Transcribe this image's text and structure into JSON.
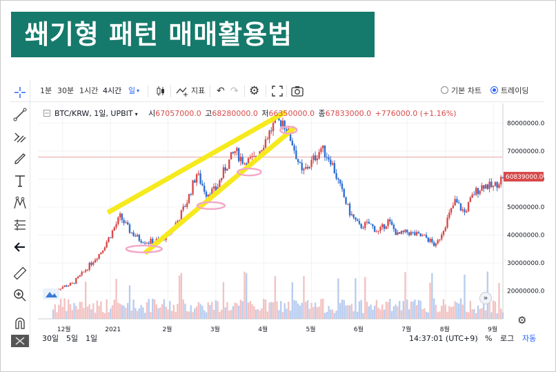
{
  "banner": {
    "title": "쐐기형 패턴 매매활용법"
  },
  "toolbar": {
    "intervals": [
      "1분",
      "30분",
      "1시간",
      "4시간",
      "일"
    ],
    "indicators_label": "지표",
    "view_basic": "기본 차트",
    "view_tradingview": "트레이딩"
  },
  "legend": {
    "symbol": "BTC/KRW, 1일, UPBIT",
    "open_label": "시",
    "open": "67057000.0",
    "high_label": "고",
    "high": "68280000.0",
    "low_label": "저",
    "low": "66350000.0",
    "close_label": "종",
    "close": "67833000.0",
    "change": "+776000.0 (+1.16%)"
  },
  "icons": [
    "crosshair-icon",
    "trendline-icon",
    "fib-icon",
    "brush-icon",
    "text-icon",
    "pattern-icon",
    "measure-icon",
    "arrow-left-icon",
    "ruler-icon",
    "zoom-in-icon",
    "magnet-icon",
    "candle-type-icon",
    "indicator-icon",
    "undo-icon",
    "redo-icon",
    "settings-icon",
    "fullscreen-icon",
    "camera-icon",
    "scroll-right-icon",
    "axis-settings-icon"
  ],
  "bottom": {
    "ranges": [
      "30일",
      "5일",
      "1일"
    ],
    "time": "14:37:01 (UTC+9)",
    "percent": "%",
    "log": "로그",
    "auto": "자동"
  },
  "colors": {
    "up": "#d84a4a",
    "down": "#2f6fd0",
    "wedge": "#f6ea1e",
    "highlight": "#f2a8c8",
    "banner": "#157a6b"
  },
  "chart_data": {
    "type": "candlestick",
    "x_ticks": [
      "12월",
      "2021",
      "2월",
      "3월",
      "4월",
      "5월",
      "6월",
      "7월",
      "8월",
      "9월"
    ],
    "y_ticks": [
      "20000000.0",
      "30000000.0",
      "40000000.0",
      "50000000.0",
      "60000000.0",
      "70000000.0",
      "80000000.0"
    ],
    "ylim": [
      10000000,
      87000000
    ],
    "last_price": "60839000.0",
    "reference_line": 67833000,
    "close_path": [
      {
        "m": "11월",
        "v": 20000000
      },
      {
        "m": "12월",
        "v": 21500000
      },
      {
        "m": "12월",
        "v": 22500000
      },
      {
        "m": "12월",
        "v": 26000000
      },
      {
        "m": "12월",
        "v": 30000000
      },
      {
        "m": "12월",
        "v": 34000000
      },
      {
        "m": "2021",
        "v": 40000000
      },
      {
        "m": "2021",
        "v": 46500000
      },
      {
        "m": "2021",
        "v": 41500000
      },
      {
        "m": "2021",
        "v": 38500000
      },
      {
        "m": "2021",
        "v": 37500000
      },
      {
        "m": "2021",
        "v": 38000000
      },
      {
        "m": "2월",
        "v": 40000000
      },
      {
        "m": "2월",
        "v": 45000000
      },
      {
        "m": "2월",
        "v": 52000000
      },
      {
        "m": "2월",
        "v": 62000000
      },
      {
        "m": "2월",
        "v": 55000000
      },
      {
        "m": "3월",
        "v": 56000000
      },
      {
        "m": "3월",
        "v": 64000000
      },
      {
        "m": "3월",
        "v": 70000000
      },
      {
        "m": "3월",
        "v": 66000000
      },
      {
        "m": "3월",
        "v": 67000000
      },
      {
        "m": "4월",
        "v": 73000000
      },
      {
        "m": "4월",
        "v": 79000000
      },
      {
        "m": "4월",
        "v": 81000000
      },
      {
        "m": "4월",
        "v": 73000000
      },
      {
        "m": "4월",
        "v": 62000000
      },
      {
        "m": "5월",
        "v": 66000000
      },
      {
        "m": "5월",
        "v": 71000000
      },
      {
        "m": "5월",
        "v": 67000000
      },
      {
        "m": "5월",
        "v": 57000000
      },
      {
        "m": "5월",
        "v": 48000000
      },
      {
        "m": "6월",
        "v": 43000000
      },
      {
        "m": "6월",
        "v": 44000000
      },
      {
        "m": "6월",
        "v": 41000000
      },
      {
        "m": "6월",
        "v": 45000000
      },
      {
        "m": "6월",
        "v": 40000000
      },
      {
        "m": "7월",
        "v": 41000000
      },
      {
        "m": "7월",
        "v": 40000000
      },
      {
        "m": "7월",
        "v": 39000000
      },
      {
        "m": "7월",
        "v": 36000000
      },
      {
        "m": "8월",
        "v": 44000000
      },
      {
        "m": "8월",
        "v": 52000000
      },
      {
        "m": "8월",
        "v": 48000000
      },
      {
        "m": "8월",
        "v": 55000000
      },
      {
        "m": "8월",
        "v": 58000000
      },
      {
        "m": "9월",
        "v": 57000000
      },
      {
        "m": "9월",
        "v": 60839000
      }
    ]
  }
}
